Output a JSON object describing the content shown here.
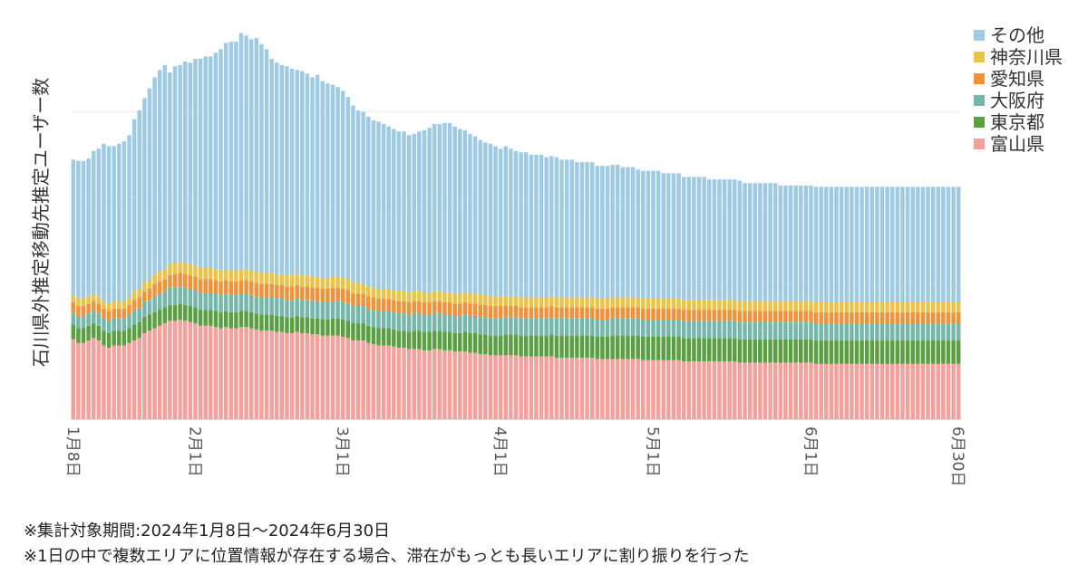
{
  "chart_data": {
    "type": "bar",
    "stacked": true,
    "ylabel": "石川県外推定移動先推定ユーザー数",
    "xlabel": "",
    "x_ticks": [
      {
        "label": "1月8日",
        "day": 0
      },
      {
        "label": "2月1日",
        "day": 24
      },
      {
        "label": "3月1日",
        "day": 53
      },
      {
        "label": "4月1日",
        "day": 84
      },
      {
        "label": "5月1日",
        "day": 114
      },
      {
        "label": "6月1日",
        "day": 145
      },
      {
        "label": "6月30日",
        "day": 174
      }
    ],
    "grid": true,
    "legend_position": "top-right",
    "series": [
      {
        "name": "富山県",
        "color": "#f4a09c",
        "values": [
          65,
          62,
          62,
          64,
          66,
          64,
          60,
          58,
          60,
          60,
          60,
          62,
          64,
          66,
          70,
          72,
          74,
          76,
          78,
          80,
          80,
          81,
          80,
          79,
          78,
          76,
          76,
          76,
          75,
          74,
          75,
          74,
          74,
          75,
          75,
          74,
          73,
          72,
          72,
          72,
          71,
          71,
          70,
          70,
          71,
          70,
          70,
          69,
          69,
          68,
          68,
          68,
          68,
          67,
          66,
          64,
          64,
          64,
          62,
          61,
          60,
          60,
          60,
          59,
          58,
          58,
          57,
          57,
          57,
          56,
          56,
          57,
          57,
          56,
          56,
          55,
          55,
          55,
          54,
          54,
          53,
          53,
          52,
          52,
          52,
          52,
          52,
          52,
          51,
          51,
          51,
          51,
          51,
          51,
          51,
          50,
          50,
          50,
          50,
          50,
          50,
          50,
          50,
          49,
          49,
          49,
          49,
          49,
          49,
          49,
          49,
          49,
          48,
          48,
          48,
          48,
          48,
          48,
          48,
          48,
          47,
          47,
          47,
          47,
          47,
          47,
          47,
          47,
          47,
          47,
          47,
          46,
          46,
          46,
          46,
          46,
          46,
          46,
          46,
          46,
          46,
          46,
          46,
          46,
          46,
          46,
          45,
          45,
          45,
          45,
          45,
          45,
          45,
          45,
          45,
          45,
          45,
          45,
          45,
          45,
          45,
          45,
          45,
          45,
          45,
          45,
          45,
          45,
          45,
          45,
          45,
          45,
          45,
          45,
          45
        ]
      },
      {
        "name": "東京都",
        "color": "#5aa043",
        "values": [
          12,
          12,
          12,
          12,
          12,
          12,
          12,
          12,
          12,
          12,
          12,
          12,
          13,
          13,
          13,
          13,
          13,
          13,
          13,
          13,
          13,
          13,
          13,
          13,
          13,
          13,
          13,
          13,
          13,
          13,
          13,
          13,
          13,
          13,
          13,
          13,
          13,
          13,
          13,
          13,
          13,
          13,
          13,
          13,
          13,
          13,
          13,
          13,
          13,
          13,
          13,
          14,
          14,
          14,
          14,
          14,
          14,
          14,
          14,
          14,
          14,
          14,
          14,
          14,
          14,
          14,
          14,
          15,
          15,
          15,
          15,
          15,
          15,
          15,
          15,
          15,
          15,
          16,
          16,
          16,
          16,
          16,
          16,
          16,
          16,
          17,
          17,
          17,
          17,
          17,
          17,
          17,
          17,
          17,
          18,
          18,
          18,
          18,
          18,
          18,
          18,
          18,
          18,
          18,
          18,
          18,
          19,
          19,
          19,
          19,
          19,
          19,
          19,
          19,
          19,
          19,
          19,
          19,
          19,
          19,
          19,
          19,
          19,
          19,
          19,
          19,
          19,
          19,
          19,
          19,
          19,
          19,
          19,
          19,
          19,
          19,
          19,
          19,
          19,
          19,
          19,
          19,
          19,
          19,
          19,
          19,
          19,
          19,
          19,
          19,
          19,
          19,
          19,
          19,
          19,
          19,
          19,
          19,
          19,
          19,
          19,
          19,
          19,
          19,
          19,
          19,
          19,
          19,
          19,
          19,
          19,
          19,
          19,
          19,
          19
        ]
      },
      {
        "name": "大阪府",
        "color": "#76b7ab",
        "values": [
          10,
          10,
          10,
          10,
          10,
          10,
          10,
          10,
          10,
          10,
          10,
          11,
          11,
          11,
          12,
          12,
          13,
          13,
          13,
          14,
          14,
          14,
          14,
          14,
          14,
          14,
          14,
          14,
          14,
          14,
          14,
          14,
          14,
          14,
          14,
          14,
          14,
          14,
          14,
          14,
          14,
          14,
          14,
          14,
          14,
          14,
          14,
          14,
          14,
          14,
          14,
          14,
          14,
          14,
          14,
          14,
          14,
          14,
          14,
          14,
          14,
          14,
          14,
          14,
          14,
          14,
          14,
          14,
          14,
          14,
          14,
          14,
          14,
          14,
          14,
          14,
          14,
          14,
          14,
          14,
          14,
          14,
          14,
          14,
          14,
          14,
          14,
          14,
          14,
          14,
          14,
          14,
          14,
          14,
          14,
          14,
          14,
          14,
          14,
          14,
          14,
          14,
          14,
          14,
          14,
          14,
          14,
          14,
          14,
          14,
          14,
          14,
          14,
          14,
          14,
          14,
          14,
          14,
          14,
          14,
          14,
          14,
          14,
          14,
          14,
          14,
          14,
          14,
          14,
          14,
          14,
          14,
          14,
          14,
          14,
          14,
          14,
          14,
          14,
          14,
          14,
          14,
          14,
          14,
          14,
          14,
          14,
          14,
          14,
          14,
          14,
          14,
          14,
          14,
          14,
          14,
          14,
          14,
          14,
          14,
          14,
          14,
          14,
          14,
          14,
          14,
          14,
          14,
          14,
          14,
          14,
          14,
          14,
          14,
          14
        ]
      },
      {
        "name": "愛知県",
        "color": "#f0923a",
        "values": [
          8,
          8,
          8,
          8,
          8,
          8,
          8,
          8,
          8,
          8,
          8,
          8,
          9,
          9,
          9,
          9,
          10,
          10,
          10,
          10,
          11,
          11,
          11,
          11,
          11,
          11,
          11,
          11,
          11,
          11,
          11,
          11,
          11,
          11,
          11,
          11,
          11,
          11,
          11,
          11,
          11,
          11,
          11,
          11,
          11,
          11,
          11,
          11,
          11,
          11,
          11,
          11,
          11,
          11,
          11,
          10,
          10,
          10,
          10,
          10,
          10,
          10,
          10,
          10,
          10,
          10,
          10,
          10,
          10,
          10,
          10,
          10,
          10,
          10,
          10,
          10,
          10,
          10,
          10,
          10,
          10,
          10,
          10,
          10,
          10,
          9,
          9,
          9,
          9,
          9,
          9,
          9,
          9,
          9,
          9,
          9,
          9,
          9,
          9,
          9,
          9,
          9,
          9,
          9,
          9,
          9,
          9,
          9,
          9,
          9,
          9,
          9,
          9,
          9,
          9,
          9,
          9,
          9,
          9,
          9,
          9,
          9,
          9,
          9,
          9,
          9,
          9,
          9,
          9,
          9,
          9,
          9,
          9,
          9,
          9,
          9,
          9,
          9,
          9,
          9,
          9,
          9,
          9,
          9,
          9,
          9,
          9,
          9,
          9,
          9,
          9,
          9,
          9,
          9,
          9,
          9,
          9,
          9,
          9,
          9,
          9,
          9,
          9,
          9,
          9,
          9,
          9,
          9,
          9,
          9,
          9,
          9,
          9,
          9,
          9
        ]
      },
      {
        "name": "神奈川県",
        "color": "#ecc349",
        "values": [
          6,
          6,
          6,
          6,
          6,
          6,
          6,
          6,
          6,
          6,
          6,
          6,
          7,
          7,
          7,
          7,
          8,
          8,
          8,
          9,
          9,
          9,
          9,
          9,
          9,
          9,
          9,
          9,
          9,
          9,
          9,
          9,
          9,
          9,
          9,
          9,
          9,
          9,
          9,
          9,
          9,
          9,
          9,
          9,
          9,
          9,
          9,
          9,
          9,
          9,
          9,
          9,
          9,
          9,
          9,
          9,
          9,
          8,
          8,
          8,
          8,
          8,
          8,
          8,
          8,
          8,
          8,
          8,
          8,
          8,
          8,
          8,
          8,
          8,
          8,
          8,
          8,
          8,
          8,
          8,
          8,
          8,
          8,
          8,
          8,
          8,
          8,
          8,
          8,
          8,
          8,
          8,
          8,
          8,
          8,
          8,
          8,
          8,
          8,
          8,
          8,
          8,
          8,
          8,
          8,
          8,
          8,
          8,
          8,
          8,
          8,
          8,
          8,
          8,
          8,
          8,
          8,
          8,
          8,
          8,
          8,
          8,
          8,
          8,
          8,
          8,
          8,
          8,
          8,
          8,
          8,
          8,
          8,
          8,
          8,
          8,
          8,
          8,
          8,
          8,
          8,
          8,
          8,
          8,
          8,
          8,
          8,
          8,
          8,
          8,
          8,
          8,
          8,
          8,
          8,
          8,
          8,
          8,
          8,
          8,
          8,
          8,
          8,
          8,
          8,
          8,
          8,
          8,
          8,
          8,
          8,
          8,
          8,
          8,
          8
        ]
      },
      {
        "name": "その他",
        "color": "#9ecae4",
        "values": [
          110,
          112,
          112,
          112,
          116,
          120,
          128,
          128,
          126,
          128,
          130,
          132,
          140,
          145,
          150,
          156,
          160,
          164,
          166,
          156,
          160,
          160,
          164,
          164,
          168,
          170,
          172,
          172,
          176,
          180,
          184,
          186,
          186,
          192,
          190,
          188,
          190,
          186,
          182,
          174,
          172,
          170,
          170,
          168,
          166,
          166,
          164,
          162,
          164,
          160,
          158,
          156,
          154,
          152,
          148,
          144,
          140,
          140,
          138,
          136,
          136,
          134,
          132,
          131,
          130,
          130,
          128,
          128,
          130,
          132,
          134,
          136,
          136,
          138,
          138,
          136,
          134,
          132,
          130,
          128,
          126,
          124,
          124,
          122,
          120,
          122,
          120,
          118,
          118,
          118,
          116,
          116,
          116,
          114,
          114,
          114,
          112,
          112,
          112,
          110,
          110,
          110,
          110,
          108,
          108,
          108,
          108,
          108,
          106,
          106,
          106,
          104,
          104,
          104,
          104,
          104,
          102,
          102,
          102,
          102,
          100,
          100,
          100,
          100,
          100,
          98,
          98,
          98,
          98,
          98,
          98,
          98,
          96,
          96,
          96,
          96,
          96,
          96,
          96,
          94,
          94,
          94,
          94,
          94,
          94,
          94,
          94,
          94,
          94,
          94,
          94,
          94,
          94,
          94,
          94,
          94,
          94,
          94,
          94,
          94,
          94,
          94,
          94,
          94,
          94,
          94,
          94,
          94,
          94,
          94,
          94,
          94,
          94,
          94,
          94
        ]
      }
    ]
  },
  "notes": {
    "period": "※集計対象期間:2024年1月8日～2024年6月30日",
    "method": "※1日の中で複数エリアに位置情報が存在する場合、滞在がもっとも長いエリアに割り振りを行った"
  }
}
